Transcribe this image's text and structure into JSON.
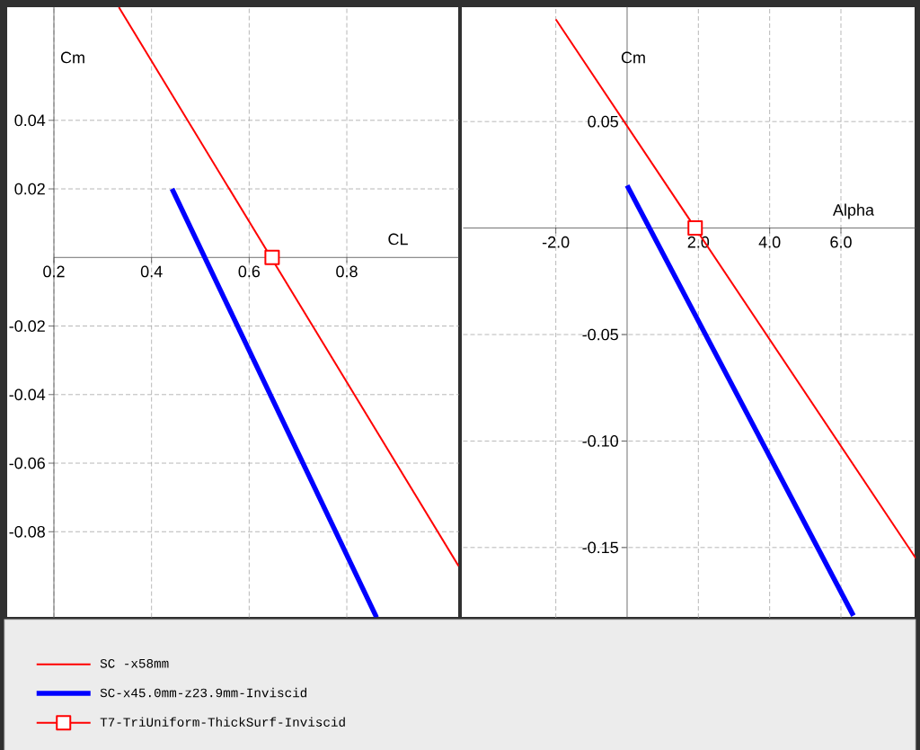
{
  "chart_data": [
    {
      "type": "line",
      "xlabel": "CL",
      "ylabel": "Cm",
      "xlim": [
        0.2,
        1.03
      ],
      "ylim": [
        -0.105,
        0.073
      ],
      "xticks": [
        0.2,
        0.4,
        0.6,
        0.8
      ],
      "yticks": [
        -0.08,
        -0.06,
        -0.04,
        -0.02,
        0.02,
        0.04
      ],
      "grid": true,
      "legend": "bottom",
      "series": [
        {
          "name": "SC -x58mm",
          "color": "#ff0000",
          "x": [
            0.333,
            1.029
          ],
          "values": [
            0.073,
            -0.09
          ]
        },
        {
          "name": "SC-x45.0mm-z23.9mm-Inviscid",
          "color": "#0000ff",
          "x": [
            0.442,
            0.861
          ],
          "values": [
            0.02,
            -0.105
          ]
        },
        {
          "name": "T7-TriUniform-ThickSurf-Inviscid",
          "color": "#ff0000",
          "x": [
            0.647
          ],
          "values": [
            0
          ],
          "marker": "square"
        }
      ]
    },
    {
      "type": "line",
      "xlabel": "Alpha",
      "ylabel": "Cm",
      "xlim": [
        -4.6,
        8.1
      ],
      "ylim": [
        -0.183,
        0.104
      ],
      "xticks": [
        {
          "value": -2,
          "label": "-2.0"
        },
        {
          "value": 2,
          "label": "2.0"
        },
        {
          "value": 4,
          "label": "4.0"
        },
        {
          "value": 6,
          "label": "6.0"
        }
      ],
      "yticks": [
        -0.15,
        {
          "value": -0.1,
          "label": "-0.10"
        },
        -0.05,
        0.05
      ],
      "grid": true,
      "series": [
        {
          "color": "#ff0000",
          "x": [
            -2.0,
            8.1
          ],
          "values": [
            0.098,
            -0.155
          ]
        },
        {
          "color": "#0000ff",
          "x": [
            0,
            6.35
          ],
          "values": [
            0.02,
            -0.182
          ]
        },
        {
          "color": "#ff0000",
          "x": [
            1.91
          ],
          "values": [
            0
          ],
          "marker": "square"
        }
      ]
    }
  ]
}
